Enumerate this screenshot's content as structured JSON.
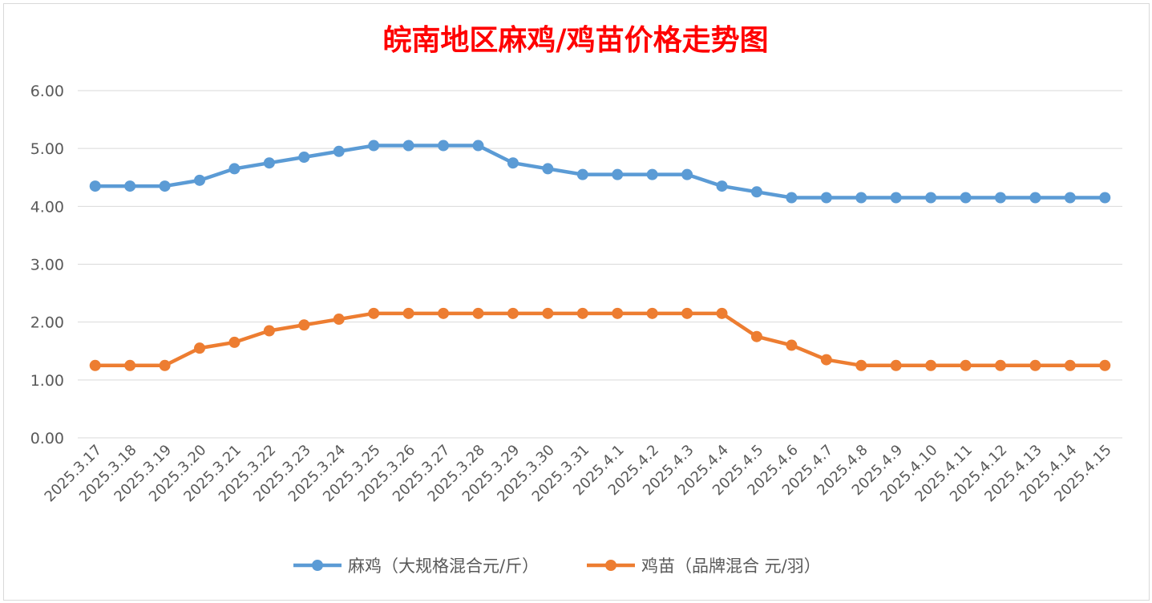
{
  "chart_data": {
    "type": "line",
    "title": "皖南地区麻鸡/鸡苗价格走势图",
    "xlabel": "",
    "ylabel": "",
    "ylim": [
      0,
      6
    ],
    "yticks": [
      "0.00",
      "1.00",
      "2.00",
      "3.00",
      "4.00",
      "5.00",
      "6.00"
    ],
    "grid": true,
    "legend_position": "bottom",
    "categories": [
      "2025.3.17",
      "2025.3.18",
      "2025.3.19",
      "2025.3.20",
      "2025.3.21",
      "2025.3.22",
      "2025.3.23",
      "2025.3.24",
      "2025.3.25",
      "2025.3.26",
      "2025.3.27",
      "2025.3.28",
      "2025.3.29",
      "2025.3.30",
      "2025.3.31",
      "2025.4.1",
      "2025.4.2",
      "2025.4.3",
      "2025.4.4",
      "2025.4.5",
      "2025.4.6",
      "2025.4.7",
      "2025.4.8",
      "2025.4.9",
      "2025.4.10",
      "2025.4.11",
      "2025.4.12",
      "2025.4.13",
      "2025.4.14",
      "2025.4.15"
    ],
    "series": [
      {
        "name": "麻鸡（大规格混合元/斤）",
        "color": "#5B9BD5",
        "values": [
          4.35,
          4.35,
          4.35,
          4.45,
          4.65,
          4.75,
          4.85,
          4.95,
          5.05,
          5.05,
          5.05,
          5.05,
          4.75,
          4.65,
          4.55,
          4.55,
          4.55,
          4.55,
          4.35,
          4.25,
          4.15,
          4.15,
          4.15,
          4.15,
          4.15,
          4.15,
          4.15,
          4.15,
          4.15,
          4.15
        ]
      },
      {
        "name": "鸡苗（品牌混合 元/羽）",
        "color": "#ED7D31",
        "values": [
          1.25,
          1.25,
          1.25,
          1.55,
          1.65,
          1.85,
          1.95,
          2.05,
          2.15,
          2.15,
          2.15,
          2.15,
          2.15,
          2.15,
          2.15,
          2.15,
          2.15,
          2.15,
          2.15,
          1.75,
          1.6,
          1.35,
          1.25,
          1.25,
          1.25,
          1.25,
          1.25,
          1.25,
          1.25,
          1.25
        ]
      }
    ]
  },
  "colors": {
    "title": "#FF0000",
    "grid": "#d9d9d9",
    "axis_text": "#595959"
  }
}
